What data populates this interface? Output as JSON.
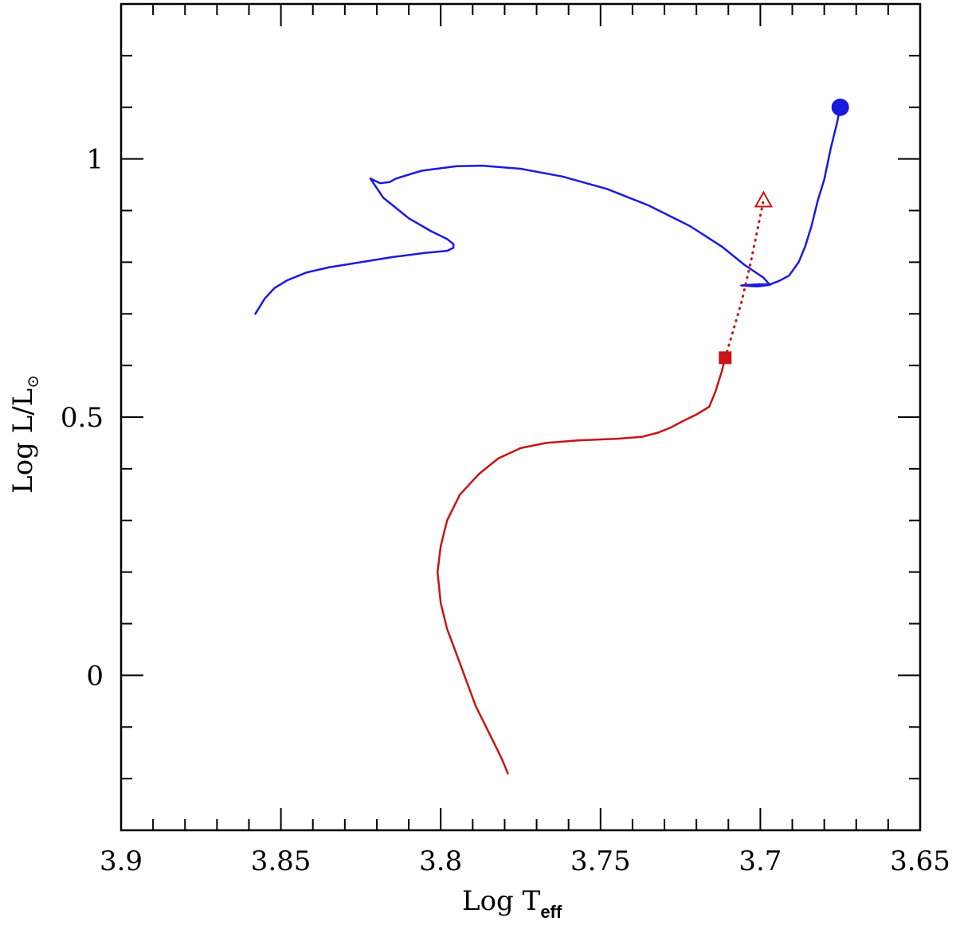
{
  "chart_data": {
    "type": "line",
    "xlabel": {
      "main": "Log T",
      "sub": "eff"
    },
    "ylabel": {
      "main": "Log L/L",
      "sub": "⊙"
    },
    "xlim": [
      3.9,
      3.65
    ],
    "ylim": [
      -0.3,
      1.3
    ],
    "x_reversed": true,
    "x_ticks": [
      3.9,
      3.85,
      3.8,
      3.75,
      3.7,
      3.65
    ],
    "x_tick_labels": [
      "3.9",
      "3.85",
      "3.8",
      "3.75",
      "3.7",
      "3.65"
    ],
    "y_ticks": [
      0,
      0.5,
      1
    ],
    "y_tick_labels": [
      "0",
      "0.5",
      "1"
    ],
    "grid": false,
    "colors": {
      "blue_track": "#1a1adf",
      "red_track": "#c81414",
      "axes": "#000000"
    },
    "series": [
      {
        "color": "#1a1adf",
        "style": "solid",
        "points": [
          [
            3.858,
            0.7
          ],
          [
            3.857,
            0.71
          ],
          [
            3.855,
            0.73
          ],
          [
            3.852,
            0.75
          ],
          [
            3.848,
            0.765
          ],
          [
            3.842,
            0.78
          ],
          [
            3.835,
            0.79
          ],
          [
            3.825,
            0.8
          ],
          [
            3.815,
            0.81
          ],
          [
            3.805,
            0.818
          ],
          [
            3.798,
            0.822
          ],
          [
            3.796,
            0.828
          ],
          [
            3.796,
            0.835
          ],
          [
            3.798,
            0.845
          ],
          [
            3.803,
            0.86
          ],
          [
            3.81,
            0.885
          ],
          [
            3.818,
            0.925
          ],
          [
            3.822,
            0.962
          ],
          [
            3.819,
            0.953
          ],
          [
            3.816,
            0.955
          ],
          [
            3.814,
            0.962
          ],
          [
            3.806,
            0.977
          ],
          [
            3.795,
            0.986
          ],
          [
            3.787,
            0.987
          ],
          [
            3.775,
            0.981
          ],
          [
            3.762,
            0.966
          ],
          [
            3.748,
            0.942
          ],
          [
            3.735,
            0.91
          ],
          [
            3.722,
            0.87
          ],
          [
            3.712,
            0.83
          ],
          [
            3.705,
            0.795
          ],
          [
            3.699,
            0.77
          ],
          [
            3.697,
            0.756
          ],
          [
            3.701,
            0.753
          ],
          [
            3.706,
            0.755
          ],
          [
            3.701,
            0.757
          ],
          [
            3.697,
            0.757
          ],
          [
            3.694,
            0.764
          ],
          [
            3.691,
            0.774
          ],
          [
            3.688,
            0.8
          ],
          [
            3.686,
            0.83
          ],
          [
            3.684,
            0.87
          ],
          [
            3.682,
            0.92
          ],
          [
            3.68,
            0.96
          ],
          [
            3.678,
            1.02
          ],
          [
            3.676,
            1.07
          ],
          [
            3.675,
            1.1
          ]
        ],
        "end_marker": "filled-circle"
      },
      {
        "color": "#c81414",
        "style": "solid",
        "points": [
          [
            3.779,
            -0.19
          ],
          [
            3.781,
            -0.16
          ],
          [
            3.785,
            -0.11
          ],
          [
            3.789,
            -0.06
          ],
          [
            3.792,
            -0.01
          ],
          [
            3.795,
            0.04
          ],
          [
            3.798,
            0.09
          ],
          [
            3.8,
            0.14
          ],
          [
            3.801,
            0.2
          ],
          [
            3.8,
            0.25
          ],
          [
            3.798,
            0.3
          ],
          [
            3.794,
            0.35
          ],
          [
            3.788,
            0.39
          ],
          [
            3.782,
            0.42
          ],
          [
            3.775,
            0.44
          ],
          [
            3.767,
            0.45
          ],
          [
            3.757,
            0.455
          ],
          [
            3.745,
            0.458
          ],
          [
            3.737,
            0.462
          ],
          [
            3.732,
            0.47
          ],
          [
            3.728,
            0.48
          ],
          [
            3.724,
            0.493
          ],
          [
            3.72,
            0.505
          ],
          [
            3.716,
            0.52
          ],
          [
            3.714,
            0.55
          ],
          [
            3.713,
            0.57
          ],
          [
            3.712,
            0.59
          ],
          [
            3.711,
            0.615
          ]
        ],
        "end_marker": "filled-square"
      },
      {
        "color": "#c81414",
        "style": "dotted",
        "points": [
          [
            3.711,
            0.615
          ],
          [
            3.706,
            0.72
          ],
          [
            3.703,
            0.8
          ],
          [
            3.699,
            0.92
          ]
        ],
        "end_marker": "open-triangle"
      }
    ]
  }
}
